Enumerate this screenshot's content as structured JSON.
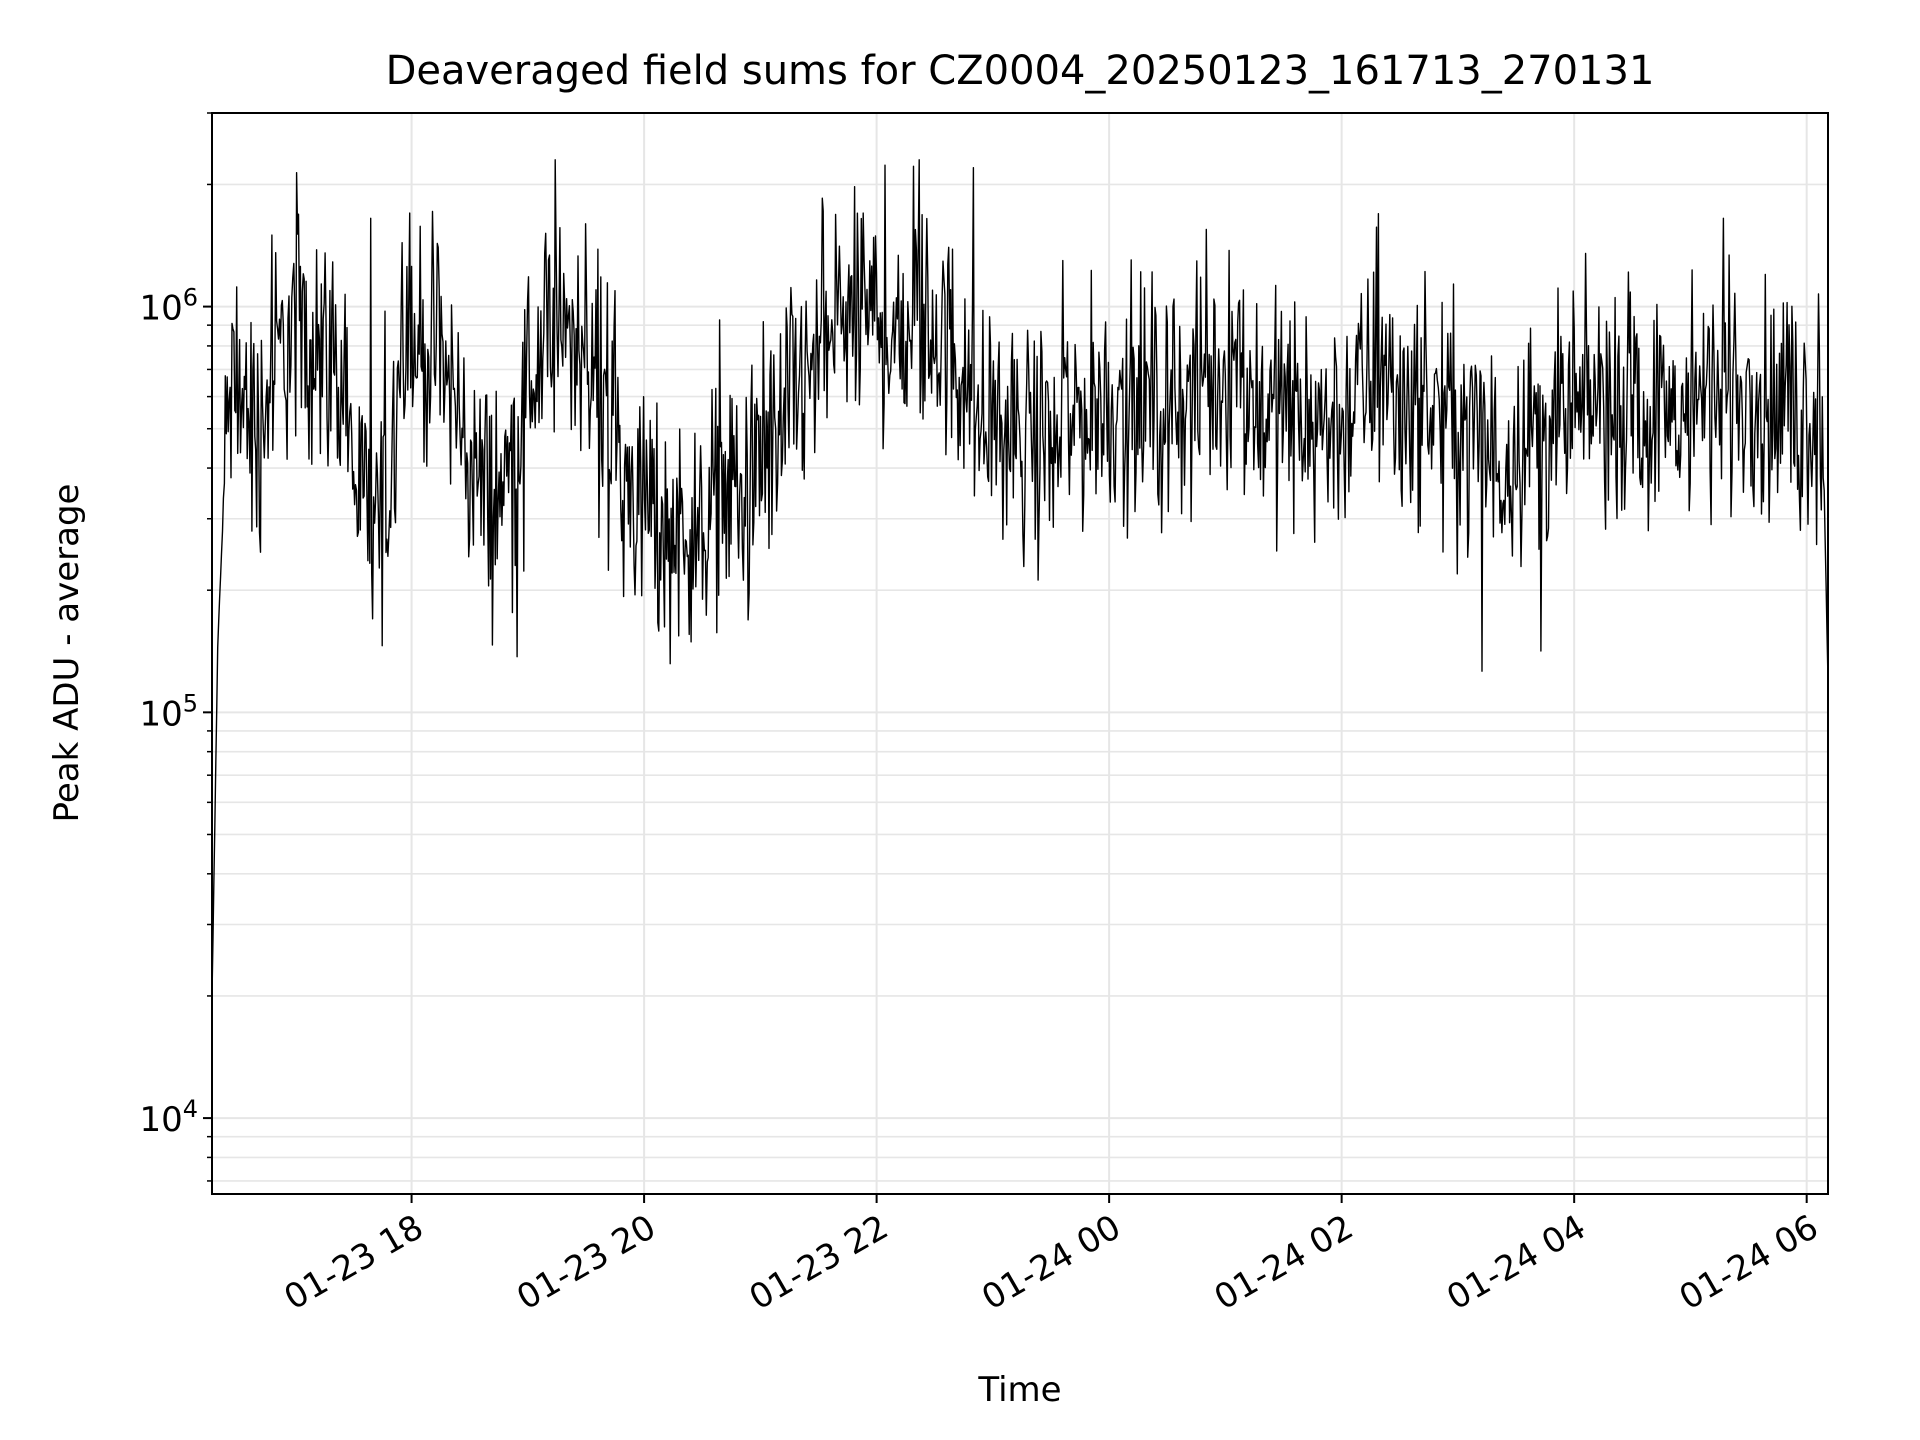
{
  "chart_data": {
    "type": "line",
    "title": "Deaveraged field sums for CZ0004_20250123_161713_270131",
    "xlabel": "Time",
    "ylabel": "Peak ADU - average",
    "y_scale": "log",
    "ylim": [
      6500,
      3000000
    ],
    "xlim": [
      "2025-01-23 16:17",
      "2025-01-24 06:11"
    ],
    "grid": true,
    "legend": "none",
    "line_color": "#000000",
    "x_ticks": [
      {
        "t": "2025-01-23 18:00",
        "label": "01-23 18"
      },
      {
        "t": "2025-01-23 20:00",
        "label": "01-23 20"
      },
      {
        "t": "2025-01-23 22:00",
        "label": "01-23 22"
      },
      {
        "t": "2025-01-24 00:00",
        "label": "01-24 00"
      },
      {
        "t": "2025-01-24 02:00",
        "label": "01-24 02"
      },
      {
        "t": "2025-01-24 04:00",
        "label": "01-24 04"
      },
      {
        "t": "2025-01-24 06:00",
        "label": "01-24 06"
      }
    ],
    "y_ticks": [
      {
        "value": 10000,
        "base": "10",
        "exp": "4"
      },
      {
        "value": 100000,
        "base": "10",
        "exp": "5"
      },
      {
        "value": 1000000,
        "base": "10",
        "exp": "6"
      }
    ],
    "series": [
      {
        "x": [
          "2025-01-23 16:17",
          "2025-01-23 16:20",
          "2025-01-23 16:25",
          "2025-01-23 16:30",
          "2025-01-23 16:40",
          "2025-01-23 16:50",
          "2025-01-23 16:58",
          "2025-01-23 17:05",
          "2025-01-23 17:15",
          "2025-01-23 17:25",
          "2025-01-23 17:33",
          "2025-01-23 17:40",
          "2025-01-23 17:48",
          "2025-01-23 17:55",
          "2025-01-23 18:00",
          "2025-01-23 18:10",
          "2025-01-23 18:20",
          "2025-01-23 18:30",
          "2025-01-23 18:40",
          "2025-01-23 18:50",
          "2025-01-23 19:00",
          "2025-01-23 19:10",
          "2025-01-23 19:20",
          "2025-01-23 19:30",
          "2025-01-23 19:40",
          "2025-01-23 19:50",
          "2025-01-23 20:00",
          "2025-01-23 20:10",
          "2025-01-23 20:20",
          "2025-01-23 20:30",
          "2025-01-23 20:40",
          "2025-01-23 20:50",
          "2025-01-23 21:00",
          "2025-01-23 21:10",
          "2025-01-23 21:20",
          "2025-01-23 21:30",
          "2025-01-23 21:40",
          "2025-01-23 21:50",
          "2025-01-23 22:00",
          "2025-01-23 22:10",
          "2025-01-23 22:20",
          "2025-01-23 22:30",
          "2025-01-23 22:40",
          "2025-01-23 22:50",
          "2025-01-23 23:00",
          "2025-01-23 23:10",
          "2025-01-23 23:20",
          "2025-01-23 23:30",
          "2025-01-23 23:40",
          "2025-01-23 23:50",
          "2025-01-24 00:00",
          "2025-01-24 00:15",
          "2025-01-24 00:30",
          "2025-01-24 00:45",
          "2025-01-24 01:00",
          "2025-01-24 01:15",
          "2025-01-24 01:30",
          "2025-01-24 01:45",
          "2025-01-24 02:00",
          "2025-01-24 02:10",
          "2025-01-24 02:20",
          "2025-01-24 02:30",
          "2025-01-24 02:45",
          "2025-01-24 03:00",
          "2025-01-24 03:10",
          "2025-01-24 03:20",
          "2025-01-24 03:30",
          "2025-01-24 03:45",
          "2025-01-24 04:00",
          "2025-01-24 04:10",
          "2025-01-24 04:20",
          "2025-01-24 04:30",
          "2025-01-24 04:45",
          "2025-01-24 05:00",
          "2025-01-24 05:15",
          "2025-01-24 05:30",
          "2025-01-24 05:45",
          "2025-01-24 05:55",
          "2025-01-24 06:02",
          "2025-01-24 06:06",
          "2025-01-24 06:09",
          "2025-01-24 06:11"
        ],
        "y": [
          20000,
          150000,
          550000,
          620000,
          480000,
          720000,
          850000,
          880000,
          820000,
          620000,
          320000,
          300000,
          330000,
          1000000,
          800000,
          780000,
          640000,
          420000,
          330000,
          380000,
          650000,
          760000,
          850000,
          880000,
          620000,
          380000,
          330000,
          290000,
          280000,
          300000,
          360000,
          340000,
          370000,
          520000,
          620000,
          700000,
          950000,
          900000,
          950000,
          880000,
          920000,
          880000,
          760000,
          560000,
          540000,
          480000,
          450000,
          470000,
          520000,
          560000,
          580000,
          600000,
          560000,
          580000,
          680000,
          580000,
          560000,
          520000,
          520000,
          620000,
          660000,
          620000,
          560000,
          520000,
          480000,
          400000,
          480000,
          500000,
          520000,
          580000,
          620000,
          580000,
          520000,
          550000,
          640000,
          600000,
          560000,
          520000,
          560000,
          500000,
          360000,
          120000
        ],
        "noise_amplitude": 0.28,
        "spikes": [
          {
            "t": "2025-01-23 19:14",
            "value": 2300000
          },
          {
            "t": "2025-01-23 22:22",
            "value": 2300000
          },
          {
            "t": "2025-01-23 22:50",
            "value": 2200000
          },
          {
            "t": "2025-01-23 21:32",
            "value": 1850000
          },
          {
            "t": "2025-01-23 21:53",
            "value": 1700000
          },
          {
            "t": "2025-01-23 17:59",
            "value": 1700000
          },
          {
            "t": "2025-01-23 17:39",
            "value": 1650000
          },
          {
            "t": "2025-01-23 19:30",
            "value": 1600000
          },
          {
            "t": "2025-01-23 16:48",
            "value": 1500000
          },
          {
            "t": "2025-01-24 00:50",
            "value": 1550000
          },
          {
            "t": "2025-01-24 05:17",
            "value": 1650000
          },
          {
            "t": "2025-01-23 17:40",
            "value": 170000
          },
          {
            "t": "2025-01-23 20:30",
            "value": 190000
          },
          {
            "t": "2025-01-23 18:14",
            "value": 1400000
          }
        ]
      }
    ]
  }
}
